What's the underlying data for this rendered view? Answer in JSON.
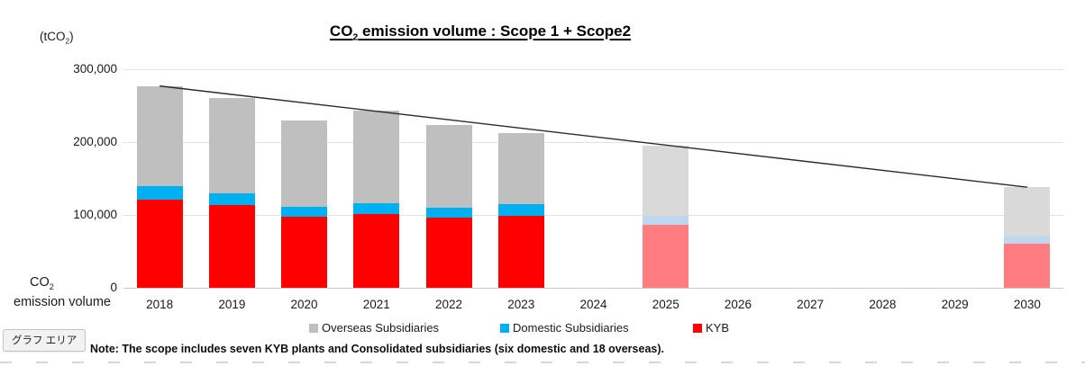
{
  "tooltip_label": "グラフ エリア",
  "note": "Note: The scope includes seven KYB plants and Consolidated subsidiaries (six domestic and 18 overseas).",
  "chart_data": {
    "type": "bar",
    "stacked": true,
    "title": {
      "pre": "CO",
      "sub": "2",
      "post": " emission volume : Scope 1 + Scope2"
    },
    "unit_label": {
      "pre": "(tCO",
      "sub": "2",
      "post": ")"
    },
    "y_axis_title": {
      "line1_pre": "CO",
      "line1_sub": "2",
      "line2": "emission volume"
    },
    "ylim": [
      0,
      300000
    ],
    "grid": true,
    "legend_position": "bottom",
    "yticks": [
      {
        "value": 0,
        "label": "0"
      },
      {
        "value": 100000,
        "label": "100,000"
      },
      {
        "value": 200000,
        "label": "200,000"
      },
      {
        "value": 300000,
        "label": "300,000"
      }
    ],
    "categories": [
      "2018",
      "2019",
      "2020",
      "2021",
      "2022",
      "2023",
      "2024",
      "2025",
      "2026",
      "2027",
      "2028",
      "2029",
      "2030"
    ],
    "stack_order": [
      "KYB",
      "Domestic Subsidiaries",
      "Overseas Subsidiaries"
    ],
    "series": [
      {
        "name": "KYB",
        "color": "#FF0000",
        "target_color": "#FF7C80",
        "values": [
          121000,
          114000,
          97000,
          101000,
          96000,
          99000,
          null,
          86000,
          null,
          null,
          null,
          null,
          60000
        ]
      },
      {
        "name": "Domestic Subsidiaries",
        "color": "#00B0F0",
        "target_color": "#BDD7EE",
        "values": [
          19000,
          16000,
          14000,
          15000,
          14000,
          16000,
          null,
          13000,
          null,
          null,
          null,
          null,
          10000
        ]
      },
      {
        "name": "Overseas Subsidiaries",
        "color": "#BFBFBF",
        "target_color": "#D9D9D9",
        "values": [
          137000,
          130000,
          119000,
          127000,
          114000,
          97000,
          null,
          96000,
          null,
          null,
          null,
          null,
          68000
        ]
      }
    ],
    "totals": [
      277000,
      260000,
      230000,
      243000,
      224000,
      212000,
      null,
      195000,
      null,
      null,
      null,
      null,
      138000
    ],
    "target_categories": [
      "2025",
      "2030"
    ],
    "trend_line": {
      "from_category": "2018",
      "from_value": 277000,
      "to_category": "2030",
      "to_value": 138000,
      "color": "#2b2b2b"
    },
    "legend": [
      {
        "label": "Overseas Subsidiaries",
        "color": "#BFBFBF"
      },
      {
        "label": "Domestic Subsidiaries",
        "color": "#00B0F0"
      },
      {
        "label": "KYB",
        "color": "#FF0000"
      }
    ]
  }
}
